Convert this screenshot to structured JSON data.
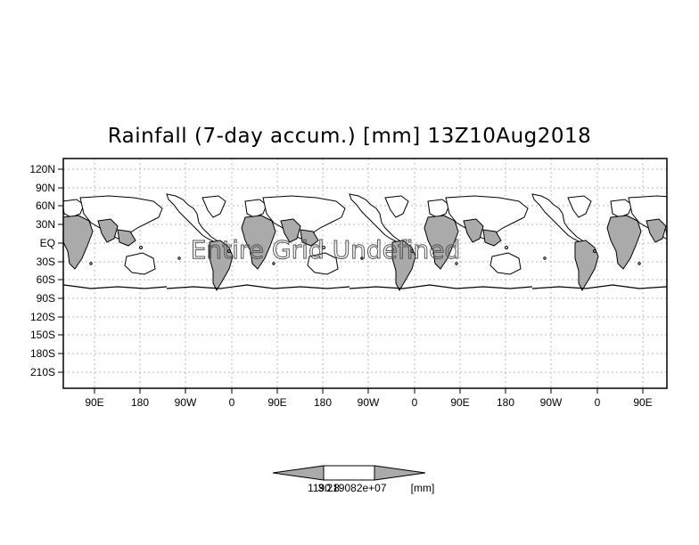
{
  "title": "Rainfall (7-day accum.) [mm] 13Z10Aug2018",
  "watermark": "Entire Grid Undefined",
  "lat_labels": [
    "120N",
    "90N",
    "60N",
    "30N",
    "EQ",
    "30S",
    "60S",
    "90S",
    "120S",
    "150S",
    "180S",
    "210S"
  ],
  "lon_labels": [
    "90E",
    "180",
    "90W",
    "0",
    "90E",
    "180",
    "90W",
    "0",
    "90E",
    "180",
    "90W",
    "0",
    "90E"
  ],
  "colorbar": {
    "label_left": "1190.8",
    "label_overlap": "3.219082e+07",
    "unit": "[mm]",
    "fill_color": "#aaaaaa"
  },
  "colors": {
    "land_fill": "#aaaaaa",
    "coast": "#000000",
    "grid": "#bbbbbb"
  }
}
